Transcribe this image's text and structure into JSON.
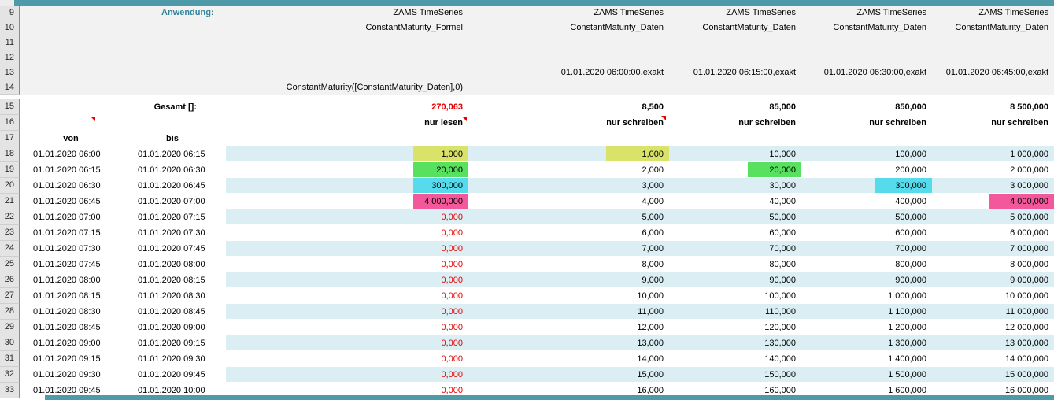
{
  "sheet": {
    "row_numbers": [
      "9",
      "10",
      "11",
      "12",
      "13",
      "14",
      "15",
      "16",
      "17",
      "18",
      "19",
      "20",
      "21",
      "22",
      "23",
      "24",
      "25",
      "26",
      "27",
      "28",
      "29",
      "30",
      "31",
      "32",
      "33"
    ]
  },
  "labels": {
    "anwendung": "Anwendung:",
    "gesamt": "Gesamt []:",
    "von": "von",
    "bis": "bis"
  },
  "columns": [
    {
      "line1": "ZAMS TimeSeries",
      "line2": "ConstantMaturity_Formel",
      "timestamp": "",
      "formula": "ConstantMaturity([ConstantMaturity_Daten],0)",
      "total": "270,063",
      "mode": "nur lesen"
    },
    {
      "line1": "ZAMS TimeSeries",
      "line2": "ConstantMaturity_Daten",
      "timestamp": "01.01.2020 06:00:00,exakt",
      "total": "8,500",
      "mode": "nur schreiben"
    },
    {
      "line1": "ZAMS TimeSeries",
      "line2": "ConstantMaturity_Daten",
      "timestamp": "01.01.2020 06:15:00,exakt",
      "total": "85,000",
      "mode": "nur schreiben"
    },
    {
      "line1": "ZAMS TimeSeries",
      "line2": "ConstantMaturity_Daten",
      "timestamp": "01.01.2020 06:30:00,exakt",
      "total": "850,000",
      "mode": "nur schreiben"
    },
    {
      "line1": "ZAMS TimeSeries",
      "line2": "ConstantMaturity_Daten",
      "timestamp": "01.01.2020 06:45:00,exakt",
      "total": "8 500,000",
      "mode": "nur schreiben"
    }
  ],
  "rows": [
    {
      "num": "18",
      "von": "01.01.2020 06:00",
      "bis": "01.01.2020 06:15",
      "formel": "1,000",
      "formel_red": false,
      "d1": "1,000",
      "d2": "10,000",
      "d3": "100,000",
      "d4": "1 000,000",
      "hl": {
        "formel": "yellow",
        "d1": "yellow"
      }
    },
    {
      "num": "19",
      "von": "01.01.2020 06:15",
      "bis": "01.01.2020 06:30",
      "formel": "20,000",
      "formel_red": false,
      "d1": "2,000",
      "d2": "20,000",
      "d3": "200,000",
      "d4": "2 000,000",
      "hl": {
        "formel": "green",
        "d2": "green"
      }
    },
    {
      "num": "20",
      "von": "01.01.2020 06:30",
      "bis": "01.01.2020 06:45",
      "formel": "300,000",
      "formel_red": false,
      "d1": "3,000",
      "d2": "30,000",
      "d3": "300,000",
      "d4": "3 000,000",
      "hl": {
        "formel": "cyan",
        "d3": "cyan"
      }
    },
    {
      "num": "21",
      "von": "01.01.2020 06:45",
      "bis": "01.01.2020 07:00",
      "formel": "4 000,000",
      "formel_red": false,
      "d1": "4,000",
      "d2": "40,000",
      "d3": "400,000",
      "d4": "4 000,000",
      "hl": {
        "formel": "pink",
        "d4": "pink"
      }
    },
    {
      "num": "22",
      "von": "01.01.2020 07:00",
      "bis": "01.01.2020 07:15",
      "formel": "0,000",
      "formel_red": true,
      "d1": "5,000",
      "d2": "50,000",
      "d3": "500,000",
      "d4": "5 000,000",
      "hl": {}
    },
    {
      "num": "23",
      "von": "01.01.2020 07:15",
      "bis": "01.01.2020 07:30",
      "formel": "0,000",
      "formel_red": true,
      "d1": "6,000",
      "d2": "60,000",
      "d3": "600,000",
      "d4": "6 000,000",
      "hl": {}
    },
    {
      "num": "24",
      "von": "01.01.2020 07:30",
      "bis": "01.01.2020 07:45",
      "formel": "0,000",
      "formel_red": true,
      "d1": "7,000",
      "d2": "70,000",
      "d3": "700,000",
      "d4": "7 000,000",
      "hl": {}
    },
    {
      "num": "25",
      "von": "01.01.2020 07:45",
      "bis": "01.01.2020 08:00",
      "formel": "0,000",
      "formel_red": true,
      "d1": "8,000",
      "d2": "80,000",
      "d3": "800,000",
      "d4": "8 000,000",
      "hl": {}
    },
    {
      "num": "26",
      "von": "01.01.2020 08:00",
      "bis": "01.01.2020 08:15",
      "formel": "0,000",
      "formel_red": true,
      "d1": "9,000",
      "d2": "90,000",
      "d3": "900,000",
      "d4": "9 000,000",
      "hl": {}
    },
    {
      "num": "27",
      "von": "01.01.2020 08:15",
      "bis": "01.01.2020 08:30",
      "formel": "0,000",
      "formel_red": true,
      "d1": "10,000",
      "d2": "100,000",
      "d3": "1 000,000",
      "d4": "10 000,000",
      "hl": {}
    },
    {
      "num": "28",
      "von": "01.01.2020 08:30",
      "bis": "01.01.2020 08:45",
      "formel": "0,000",
      "formel_red": true,
      "d1": "11,000",
      "d2": "110,000",
      "d3": "1 100,000",
      "d4": "11 000,000",
      "hl": {}
    },
    {
      "num": "29",
      "von": "01.01.2020 08:45",
      "bis": "01.01.2020 09:00",
      "formel": "0,000",
      "formel_red": true,
      "d1": "12,000",
      "d2": "120,000",
      "d3": "1 200,000",
      "d4": "12 000,000",
      "hl": {}
    },
    {
      "num": "30",
      "von": "01.01.2020 09:00",
      "bis": "01.01.2020 09:15",
      "formel": "0,000",
      "formel_red": true,
      "d1": "13,000",
      "d2": "130,000",
      "d3": "1 300,000",
      "d4": "13 000,000",
      "hl": {}
    },
    {
      "num": "31",
      "von": "01.01.2020 09:15",
      "bis": "01.01.2020 09:30",
      "formel": "0,000",
      "formel_red": true,
      "d1": "14,000",
      "d2": "140,000",
      "d3": "1 400,000",
      "d4": "14 000,000",
      "hl": {}
    },
    {
      "num": "32",
      "von": "01.01.2020 09:30",
      "bis": "01.01.2020 09:45",
      "formel": "0,000",
      "formel_red": true,
      "d1": "15,000",
      "d2": "150,000",
      "d3": "1 500,000",
      "d4": "15 000,000",
      "hl": {}
    },
    {
      "num": "33",
      "von": "01.01.2020 09:45",
      "bis": "01.01.2020 10:00",
      "formel": "0,000",
      "formel_red": true,
      "d1": "16,000",
      "d2": "160,000",
      "d3": "1 600,000",
      "d4": "16 000,000",
      "hl": {}
    }
  ],
  "colors": {
    "teal_bar": "#4e9aa9",
    "teal_text": "#31859b",
    "band_cyan": "#daeef3",
    "header_bg": "#f2f2f2",
    "hl_yellow": "#d9e36a",
    "hl_green": "#57e15e",
    "hl_cyan": "#55dbeb",
    "hl_pink": "#f2589b",
    "red_text": "#e60000"
  }
}
